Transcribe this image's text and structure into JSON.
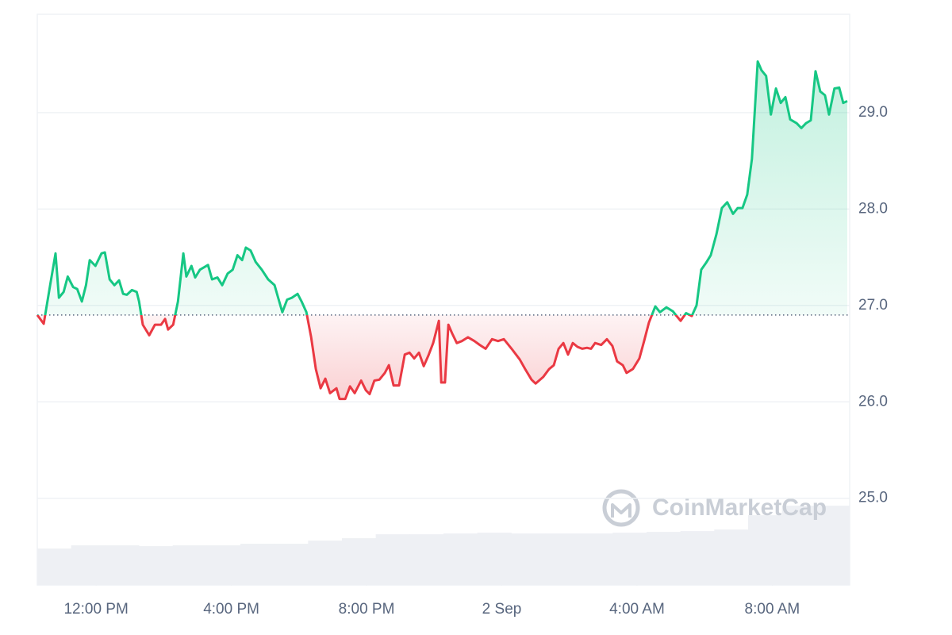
{
  "chart_data": {
    "type": "line",
    "watermark": "CoinMarketCap",
    "baseline": 26.9,
    "up_color": "#16c784",
    "down_color": "#ea3943",
    "grid": true,
    "xlim": [
      -1.74,
      22.29
    ],
    "ylim": [
      24.1,
      30.02
    ],
    "yticks": [
      {
        "value": 25,
        "label": "25.0"
      },
      {
        "value": 26,
        "label": "26.0"
      },
      {
        "value": 27,
        "label": "27.0"
      },
      {
        "value": 28,
        "label": "28.0"
      },
      {
        "value": 29,
        "label": "29.0"
      }
    ],
    "xticks": [
      {
        "value": 0,
        "label": "12:00 PM"
      },
      {
        "value": 4,
        "label": "4:00 PM"
      },
      {
        "value": 8,
        "label": "8:00 PM"
      },
      {
        "value": 12,
        "label": "2 Sep"
      },
      {
        "value": 16,
        "label": "4:00 AM"
      },
      {
        "value": 20,
        "label": "8:00 AM"
      }
    ],
    "x": [
      -1.74,
      -1.55,
      -1.36,
      -1.2,
      -1.1,
      -0.96,
      -0.84,
      -0.68,
      -0.56,
      -0.42,
      -0.3,
      -0.19,
      -0.02,
      0.16,
      0.26,
      0.4,
      0.54,
      0.68,
      0.8,
      0.91,
      1.06,
      1.2,
      1.27,
      1.38,
      1.57,
      1.74,
      1.92,
      2.04,
      2.13,
      2.28,
      2.42,
      2.58,
      2.67,
      2.82,
      2.93,
      3.07,
      3.31,
      3.43,
      3.59,
      3.73,
      3.89,
      4.04,
      4.18,
      4.32,
      4.43,
      4.57,
      4.72,
      4.9,
      5.09,
      5.28,
      5.4,
      5.51,
      5.65,
      5.79,
      5.96,
      6.08,
      6.22,
      6.36,
      6.5,
      6.64,
      6.78,
      6.92,
      7.11,
      7.2,
      7.37,
      7.51,
      7.65,
      7.84,
      7.98,
      8.09,
      8.23,
      8.38,
      8.54,
      8.66,
      8.8,
      8.96,
      9.13,
      9.27,
      9.41,
      9.55,
      9.69,
      9.83,
      9.97,
      10.14,
      10.21,
      10.32,
      10.42,
      10.53,
      10.67,
      10.82,
      11.0,
      11.19,
      11.35,
      11.52,
      11.71,
      11.89,
      12.06,
      12.29,
      12.53,
      12.69,
      12.88,
      13.0,
      13.23,
      13.4,
      13.54,
      13.68,
      13.82,
      13.96,
      14.1,
      14.24,
      14.38,
      14.52,
      14.64,
      14.76,
      14.94,
      15.11,
      15.27,
      15.41,
      15.58,
      15.69,
      15.88,
      16.07,
      16.21,
      16.35,
      16.54,
      16.68,
      16.87,
      17.06,
      17.17,
      17.29,
      17.45,
      17.62,
      17.76,
      17.9,
      18.04,
      18.18,
      18.35,
      18.51,
      18.67,
      18.84,
      18.98,
      19.12,
      19.26,
      19.4,
      19.57,
      19.68,
      19.82,
      19.96,
      20.11,
      20.25,
      20.39,
      20.53,
      20.72,
      20.86,
      21.0,
      21.14,
      21.28,
      21.42,
      21.56,
      21.68,
      21.84,
      21.98,
      22.1,
      22.22
    ],
    "values": [
      26.9,
      26.81,
      27.21,
      27.54,
      27.08,
      27.14,
      27.3,
      27.19,
      27.17,
      27.04,
      27.21,
      27.47,
      27.41,
      27.54,
      27.55,
      27.27,
      27.21,
      27.26,
      27.12,
      27.11,
      27.16,
      27.14,
      27.04,
      26.8,
      26.69,
      26.8,
      26.8,
      26.86,
      26.75,
      26.8,
      27.04,
      27.54,
      27.3,
      27.41,
      27.29,
      27.37,
      27.42,
      27.27,
      27.29,
      27.21,
      27.33,
      27.37,
      27.52,
      27.47,
      27.6,
      27.57,
      27.45,
      27.37,
      27.27,
      27.21,
      27.06,
      26.93,
      27.06,
      27.08,
      27.12,
      27.04,
      26.93,
      26.67,
      26.34,
      26.14,
      26.24,
      26.09,
      26.14,
      26.03,
      26.03,
      26.16,
      26.09,
      26.22,
      26.12,
      26.08,
      26.22,
      26.23,
      26.3,
      26.38,
      26.17,
      26.17,
      26.49,
      26.51,
      26.45,
      26.51,
      26.37,
      26.48,
      26.61,
      26.84,
      26.2,
      26.2,
      26.8,
      26.71,
      26.61,
      26.63,
      26.67,
      26.63,
      26.59,
      26.55,
      26.65,
      26.63,
      26.65,
      26.55,
      26.44,
      26.34,
      26.23,
      26.19,
      26.26,
      26.34,
      26.38,
      26.55,
      26.61,
      26.49,
      26.61,
      26.57,
      26.55,
      26.56,
      26.55,
      26.61,
      26.59,
      26.65,
      26.58,
      26.42,
      26.38,
      26.3,
      26.34,
      26.45,
      26.63,
      26.82,
      26.99,
      26.93,
      26.98,
      26.94,
      26.89,
      26.84,
      26.92,
      26.89,
      27.0,
      27.37,
      27.44,
      27.52,
      27.74,
      28.01,
      28.07,
      27.95,
      28.01,
      28.01,
      28.15,
      28.52,
      29.53,
      29.44,
      29.38,
      28.98,
      29.25,
      29.1,
      29.16,
      28.93,
      28.89,
      28.84,
      28.89,
      28.92,
      29.43,
      29.22,
      29.18,
      28.98,
      29.25,
      29.26,
      29.1,
      29.12
    ],
    "volume": {
      "color": "#eef0f4",
      "vlim": [
        0,
        720
      ],
      "values": [
        46,
        50,
        50,
        49,
        50,
        50,
        52,
        52,
        56,
        59,
        64,
        64,
        65,
        66,
        65,
        65,
        65,
        66,
        67,
        68,
        70,
        88,
        100,
        100
      ]
    }
  }
}
